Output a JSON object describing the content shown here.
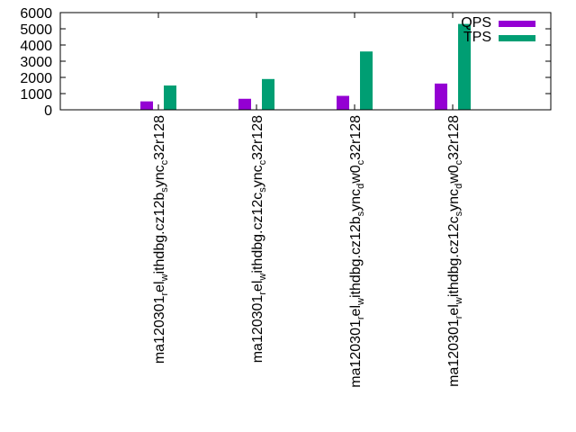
{
  "chart_data": {
    "type": "bar",
    "title": "",
    "xlabel": "",
    "ylabel": "",
    "ylim": [
      0,
      6000
    ],
    "yticks": [
      "0",
      "1000",
      "2000",
      "3000",
      "4000",
      "5000",
      "6000"
    ],
    "grid": false,
    "legend_position": "top-right",
    "categories": [
      {
        "base": "ma120301",
        "parts": [
          [
            "r",
            "el"
          ],
          [
            "w",
            "ithdbg.cz12b"
          ],
          [
            "s",
            "ync"
          ],
          [
            "c",
            "32r128"
          ]
        ]
      },
      {
        "base": "ma120301",
        "parts": [
          [
            "r",
            "el"
          ],
          [
            "w",
            "ithdbg.cz12c"
          ],
          [
            "s",
            "ync"
          ],
          [
            "c",
            "32r128"
          ]
        ]
      },
      {
        "base": "ma120301",
        "parts": [
          [
            "r",
            "el"
          ],
          [
            "w",
            "ithdbg.cz12b"
          ],
          [
            "s",
            "ync"
          ],
          [
            "d",
            "w0"
          ],
          [
            "c",
            "32r128"
          ]
        ]
      },
      {
        "base": "ma120301",
        "parts": [
          [
            "r",
            "el"
          ],
          [
            "w",
            "ithdbg.cz12c"
          ],
          [
            "s",
            "ync"
          ],
          [
            "d",
            "w0"
          ],
          [
            "c",
            "32r128"
          ]
        ]
      }
    ],
    "series": [
      {
        "name": "QPS",
        "color": "#9400d3",
        "values": [
          520,
          680,
          860,
          1620
        ]
      },
      {
        "name": "TPS",
        "color": "#009e73",
        "values": [
          1500,
          1900,
          3600,
          5300
        ]
      }
    ]
  }
}
